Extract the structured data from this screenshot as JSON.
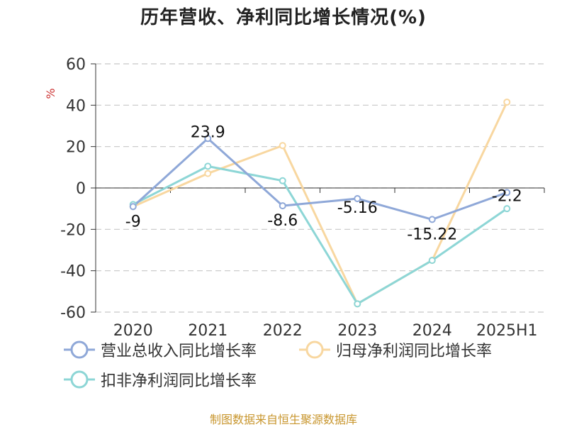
{
  "chart_data": {
    "type": "line",
    "title": "历年营收、净利同比增长情况(%)",
    "ylabel": "%",
    "xlabel": "",
    "categories": [
      "2020",
      "2021",
      "2022",
      "2023",
      "2024",
      "2025H1"
    ],
    "ylim": [
      -60,
      60
    ],
    "yticks": [
      60,
      40,
      20,
      0,
      -20,
      -40,
      -60
    ],
    "grid": true,
    "legend_position": "bottom",
    "series": [
      {
        "name": "营业总收入同比增长率",
        "values": [
          -9,
          23.9,
          -8.6,
          -5.16,
          -15.22,
          -2.2
        ],
        "labels": [
          "-9",
          "23.9",
          "-8.6",
          "-5.16",
          "-15.22",
          "-2.2"
        ],
        "color": "#8fa8d8"
      },
      {
        "name": "归母净利润同比增长率",
        "values": [
          -9,
          7,
          20.5,
          -56,
          -35,
          41.5
        ],
        "color": "#f8d7a0"
      },
      {
        "name": "扣非净利润同比增长率",
        "values": [
          -8,
          10.5,
          3.5,
          -56,
          -35,
          -10
        ],
        "color": "#8dd6d6"
      }
    ]
  },
  "source": "制图数据来自恒生聚源数据库"
}
